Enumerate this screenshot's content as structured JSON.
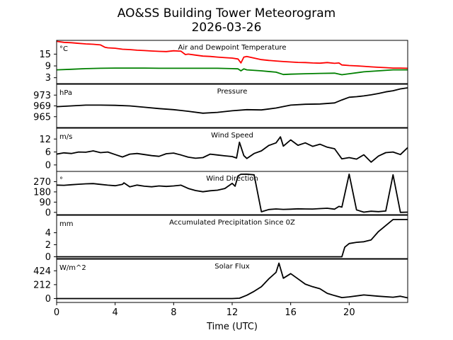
{
  "page": {
    "title": "AO&SS Building Tower Meteorogram",
    "date": "2026-03-26"
  },
  "chart_data": {
    "type": "line",
    "title": "AO&SS Building Tower Meteorogram",
    "subtitle": "2026-03-26",
    "xlabel": "Time (UTC)",
    "xlim": [
      0,
      24
    ],
    "xticks": [
      0,
      4,
      8,
      12,
      16,
      20
    ],
    "panels": [
      {
        "name": "Air and Dewpoint Temperature",
        "unit": "°C",
        "ylim": [
          0,
          22
        ],
        "yticks": [
          3,
          9,
          15
        ],
        "series": [
          {
            "name": "Air Temperature",
            "color": "#ff0000",
            "x": [
              0,
              0.5,
              1,
              1.5,
              2,
              2.5,
              3,
              3.3,
              3.5,
              4,
              4.5,
              5,
              5.5,
              6,
              6.5,
              7,
              7.5,
              8,
              8.5,
              8.8,
              9,
              9.5,
              10,
              10.5,
              11,
              11.5,
              12,
              12.4,
              12.6,
              12.8,
              13,
              13.5,
              14,
              14.5,
              15,
              15.5,
              16,
              16.5,
              17,
              17.5,
              18,
              18.5,
              19,
              19.3,
              19.5,
              20,
              20.5,
              21,
              21.5,
              22,
              22.5,
              23,
              23.5,
              24
            ],
            "values": [
              21.5,
              21,
              20.8,
              20.5,
              20.2,
              20,
              19.7,
              18.5,
              18.2,
              18,
              17.5,
              17.3,
              17,
              16.8,
              16.6,
              16.4,
              16.3,
              16.7,
              16.5,
              14.8,
              15,
              14.5,
              14,
              13.8,
              13.5,
              13.2,
              13,
              12.5,
              10.5,
              13.5,
              13.8,
              13,
              12.2,
              11.8,
              11.5,
              11.2,
              11,
              10.8,
              10.7,
              10.5,
              10.4,
              10.7,
              10.3,
              10.5,
              9.5,
              9.2,
              9,
              8.8,
              8.5,
              8.3,
              8.1,
              7.9,
              7.9,
              7.8
            ]
          },
          {
            "name": "Dewpoint Temperature",
            "color": "#008000",
            "x": [
              0,
              1,
              2,
              3,
              4,
              5,
              6,
              7,
              8,
              9,
              10,
              11,
              12,
              12.4,
              12.6,
              12.8,
              13,
              14,
              15,
              15.5,
              16,
              17,
              18,
              19,
              19.5,
              20,
              21,
              22,
              23,
              24
            ],
            "values": [
              7,
              7.3,
              7.6,
              7.8,
              7.9,
              7.9,
              7.9,
              7.8,
              7.8,
              7.8,
              7.8,
              7.8,
              7.6,
              7.5,
              6.5,
              7.5,
              7,
              6.5,
              5.8,
              4.6,
              4.8,
              5,
              5.2,
              5.3,
              4.5,
              5,
              6,
              6.5,
              7,
              7
            ]
          }
        ]
      },
      {
        "name": "Pressure",
        "unit": "hPa",
        "ylim": [
          961,
          977
        ],
        "yticks": [
          965,
          969,
          973
        ],
        "series": [
          {
            "name": "Pressure",
            "color": "#000000",
            "x": [
              0,
              1,
              2,
              3,
              4,
              5,
              6,
              7,
              8,
              9,
              10,
              11,
              12,
              13,
              14,
              15,
              16,
              17,
              18,
              19,
              19.5,
              20,
              20.5,
              21,
              21.5,
              22,
              22.5,
              23,
              23.5,
              24
            ],
            "values": [
              968.7,
              969,
              969.3,
              969.3,
              969.2,
              969,
              968.5,
              968,
              967.6,
              967,
              966.3,
              966.6,
              967.2,
              967.6,
              967.5,
              968.2,
              969.3,
              969.6,
              969.7,
              970.1,
              971.2,
              972.2,
              972.4,
              972.7,
              973.1,
              973.6,
              974.2,
              974.6,
              975.3,
              975.7
            ]
          }
        ]
      },
      {
        "name": "Wind Speed",
        "unit": "m/s",
        "ylim": [
          -3,
          17
        ],
        "yticks": [
          0,
          6,
          12
        ],
        "series": [
          {
            "name": "Wind Speed",
            "color": "#000000",
            "x": [
              0,
              0.5,
              1,
              1.5,
              2,
              2.5,
              3,
              3.5,
              4,
              4.5,
              5,
              5.5,
              6,
              6.5,
              7,
              7.5,
              8,
              8.5,
              9,
              9.5,
              10,
              10.5,
              11,
              11.5,
              12,
              12.3,
              12.5,
              12.8,
              13,
              13.5,
              14,
              14.5,
              15,
              15.3,
              15.5,
              16,
              16.5,
              17,
              17.5,
              18,
              18.5,
              19,
              19.5,
              20,
              20.5,
              21,
              21.5,
              22,
              22.5,
              23,
              23.5,
              24
            ],
            "values": [
              5,
              5.6,
              5.3,
              6,
              5.9,
              6.5,
              5.7,
              6,
              4.8,
              3.7,
              5,
              5.3,
              4.8,
              4.3,
              4,
              5.2,
              5.5,
              4.6,
              3.6,
              3.1,
              3.4,
              5,
              4.6,
              4.2,
              3.9,
              3.2,
              10.5,
              4.3,
              3,
              5.3,
              6.5,
              9,
              10.2,
              13,
              8.7,
              11.6,
              9.1,
              10.2,
              8.6,
              9.6,
              8.2,
              7.5,
              2.8,
              3.4,
              2.7,
              4.7,
              1.3,
              4.1,
              5.7,
              6,
              4.8,
              8
            ]
          }
        ]
      },
      {
        "name": "Wind Direction",
        "unit": "°",
        "ylim": [
          -20,
          360
        ],
        "yticks": [
          0,
          90,
          180,
          270
        ],
        "series": [
          {
            "name": "Wind Direction",
            "color": "#000000",
            "x": [
              0,
              0.5,
              1,
              1.5,
              2,
              2.5,
              3,
              3.5,
              4,
              4.5,
              4.6,
              5,
              5.5,
              6,
              6.5,
              7,
              7.5,
              8,
              8.5,
              9,
              9.5,
              10,
              10.5,
              11,
              11.5,
              12,
              12.2,
              12.4,
              12.6,
              13,
              13.5,
              14,
              14.5,
              15,
              15.5,
              16,
              16.5,
              17,
              17.5,
              18,
              18.5,
              19,
              19.3,
              19.5,
              20,
              20.5,
              21,
              21.5,
              22,
              22.5,
              23,
              23.5,
              24
            ],
            "values": [
              240,
              238,
              243,
              247,
              251,
              253,
              246,
              239,
              234,
              246,
              260,
              225,
              240,
              230,
              225,
              232,
              228,
              232,
              239,
              210,
              192,
              181,
              190,
              195,
              210,
              255,
              230,
              320,
              335,
              336,
              330,
              5,
              25,
              30,
              26,
              28,
              31,
              30,
              29,
              33,
              36,
              28,
              52,
              46,
              336,
              22,
              2,
              10,
              6,
              12,
              330,
              0,
              2
            ]
          }
        ]
      },
      {
        "name": "Accumulated Precipitation Since 0Z",
        "unit": "mm",
        "ylim": [
          -0.3,
          6.9
        ],
        "yticks": [
          0,
          2,
          4
        ],
        "series": [
          {
            "name": "Accumulated Precipitation",
            "color": "#000000",
            "x": [
              0,
              19.5,
              19.7,
              20,
              20.5,
              21,
              21.5,
              22,
              22.5,
              23,
              24
            ],
            "values": [
              0,
              0,
              1.6,
              2.2,
              2.4,
              2.5,
              2.8,
              4.2,
              5.2,
              6.2,
              6.2
            ]
          }
        ]
      },
      {
        "name": "Solar Flux",
        "unit": "W/m^2",
        "ylim": [
          -60,
          600
        ],
        "yticks": [
          0,
          212,
          424
        ],
        "series": [
          {
            "name": "Solar Flux",
            "color": "#000000",
            "x": [
              0,
              10,
              11,
              12,
              12.5,
              13,
              13.5,
              14,
              14.5,
              15,
              15.2,
              15.5,
              16,
              16.5,
              17,
              17.5,
              18,
              18.5,
              19,
              19.5,
              20,
              21,
              22,
              23,
              23.5,
              24
            ],
            "values": [
              0,
              0,
              0,
              0,
              5,
              50,
              110,
              180,
              300,
              400,
              540,
              310,
              380,
              300,
              220,
              180,
              150,
              80,
              45,
              15,
              25,
              55,
              35,
              20,
              35,
              10
            ]
          }
        ]
      }
    ]
  }
}
